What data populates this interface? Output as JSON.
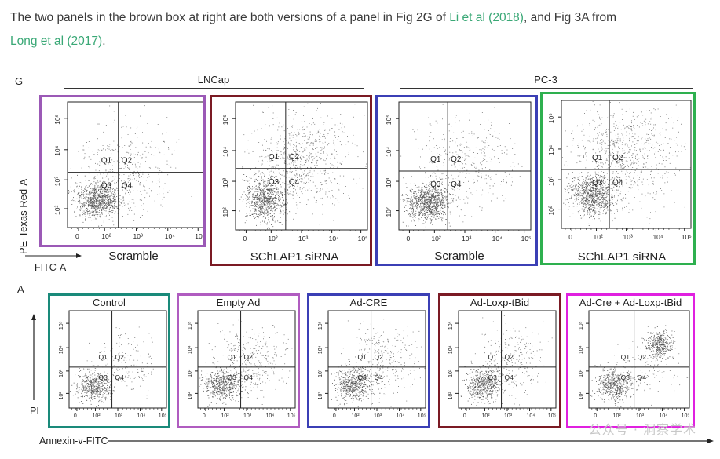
{
  "intro": {
    "text_before": "The two panels in the brown box at right are both versions of a panel in Fig 2G of ",
    "link1": "Li et al (2018)",
    "text_middle": ", and Fig 3A from",
    "link2": "Long et al (2017)",
    "text_after": ".",
    "link_color": "#3aa876"
  },
  "figure_g": {
    "panel_letter": "G",
    "group_labels": [
      "LNCap",
      "PC-3"
    ],
    "y_axis_label": "PE-Texas Red-A",
    "x_axis_label": "FITC-A",
    "panels": [
      {
        "caption": "Scramble",
        "border_color": "#9b59b6"
      },
      {
        "caption": "SChLAP1 siRNA",
        "border_color": "#7b1a24"
      },
      {
        "caption": "Scramble",
        "border_color": "#3b3fb5"
      },
      {
        "caption": "SChLAP1 siRNA",
        "border_color": "#2eb04f"
      }
    ],
    "quadrants": [
      "Q1",
      "Q2",
      "Q3",
      "Q4"
    ],
    "x_ticks": [
      "0",
      "10²",
      "10³",
      "10⁴",
      "10⁵"
    ],
    "y_ticks": [
      "10²",
      "10³",
      "10⁴",
      "10⁵"
    ]
  },
  "figure_a": {
    "panel_letter": "A",
    "y_axis_label": "PI",
    "x_axis_label": "Annexin-v-FITC",
    "panels": [
      {
        "caption": "Control",
        "border_color": "#1a8a7a"
      },
      {
        "caption": "Empty Ad",
        "border_color": "#b05cc0"
      },
      {
        "caption": "Ad-CRE",
        "border_color": "#3b3fb5"
      },
      {
        "caption": "Ad-Loxp-tBid",
        "border_color": "#7b1a24"
      },
      {
        "caption": "Ad-Cre + Ad-Loxp-tBid",
        "border_color": "#e020e0"
      }
    ],
    "quadrants": [
      "Q1",
      "Q2",
      "Q3",
      "Q4"
    ],
    "x_ticks": [
      "0",
      "10²",
      "10³",
      "10⁴",
      "10⁵"
    ],
    "y_ticks": [
      "10²",
      "10³",
      "10⁴",
      "10⁵"
    ]
  },
  "watermark": "公众号 · 洞察学术"
}
